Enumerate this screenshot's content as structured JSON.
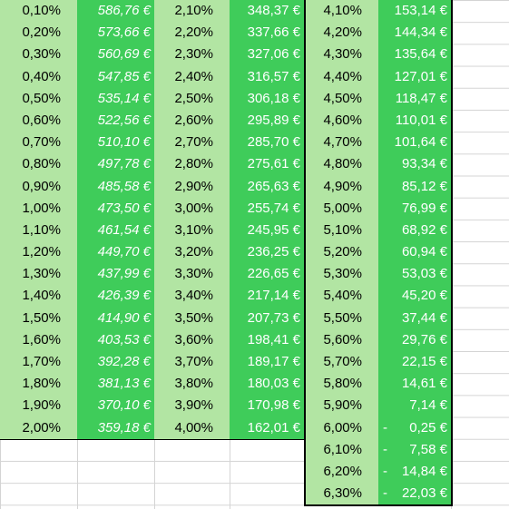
{
  "sheet": {
    "colors": {
      "percent_bg": "#b2e5a3",
      "amount_bg": "#3fcc5a",
      "border": "#000000",
      "grid": "#d4d4d4"
    },
    "block1": {
      "rows": [
        {
          "rate": "0,10%",
          "amount": "586,76 €"
        },
        {
          "rate": "0,20%",
          "amount": "573,66 €"
        },
        {
          "rate": "0,30%",
          "amount": "560,69 €"
        },
        {
          "rate": "0,40%",
          "amount": "547,85 €"
        },
        {
          "rate": "0,50%",
          "amount": "535,14 €"
        },
        {
          "rate": "0,60%",
          "amount": "522,56 €"
        },
        {
          "rate": "0,70%",
          "amount": "510,10 €"
        },
        {
          "rate": "0,80%",
          "amount": "497,78 €"
        },
        {
          "rate": "0,90%",
          "amount": "485,58 €"
        },
        {
          "rate": "1,00%",
          "amount": "473,50 €"
        },
        {
          "rate": "1,10%",
          "amount": "461,54 €"
        },
        {
          "rate": "1,20%",
          "amount": "449,70 €"
        },
        {
          "rate": "1,30%",
          "amount": "437,99 €"
        },
        {
          "rate": "1,40%",
          "amount": "426,39 €"
        },
        {
          "rate": "1,50%",
          "amount": "414,90 €"
        },
        {
          "rate": "1,60%",
          "amount": "403,53 €"
        },
        {
          "rate": "1,70%",
          "amount": "392,28 €"
        },
        {
          "rate": "1,80%",
          "amount": "381,13 €"
        },
        {
          "rate": "1,90%",
          "amount": "370,10 €"
        },
        {
          "rate": "2,00%",
          "amount": "359,18 €"
        }
      ]
    },
    "block2": {
      "rows": [
        {
          "rate": "2,10%",
          "amount": "348,37 €"
        },
        {
          "rate": "2,20%",
          "amount": "337,66 €"
        },
        {
          "rate": "2,30%",
          "amount": "327,06 €"
        },
        {
          "rate": "2,40%",
          "amount": "316,57 €"
        },
        {
          "rate": "2,50%",
          "amount": "306,18 €"
        },
        {
          "rate": "2,60%",
          "amount": "295,89 €"
        },
        {
          "rate": "2,70%",
          "amount": "285,70 €"
        },
        {
          "rate": "2,80%",
          "amount": "275,61 €"
        },
        {
          "rate": "2,90%",
          "amount": "265,63 €"
        },
        {
          "rate": "3,00%",
          "amount": "255,74 €"
        },
        {
          "rate": "3,10%",
          "amount": "245,95 €"
        },
        {
          "rate": "3,20%",
          "amount": "236,25 €"
        },
        {
          "rate": "3,30%",
          "amount": "226,65 €"
        },
        {
          "rate": "3,40%",
          "amount": "217,14 €"
        },
        {
          "rate": "3,50%",
          "amount": "207,73 €"
        },
        {
          "rate": "3,60%",
          "amount": "198,41 €"
        },
        {
          "rate": "3,70%",
          "amount": "189,17 €"
        },
        {
          "rate": "3,80%",
          "amount": "180,03 €"
        },
        {
          "rate": "3,90%",
          "amount": "170,98 €"
        },
        {
          "rate": "4,00%",
          "amount": "162,01 €"
        }
      ]
    },
    "block3": {
      "rows": [
        {
          "rate": "4,10%",
          "amount": "153,14 €",
          "sign": ""
        },
        {
          "rate": "4,20%",
          "amount": "144,34 €",
          "sign": ""
        },
        {
          "rate": "4,30%",
          "amount": "135,64 €",
          "sign": ""
        },
        {
          "rate": "4,40%",
          "amount": "127,01 €",
          "sign": ""
        },
        {
          "rate": "4,50%",
          "amount": "118,47 €",
          "sign": ""
        },
        {
          "rate": "4,60%",
          "amount": "110,01 €",
          "sign": ""
        },
        {
          "rate": "4,70%",
          "amount": "101,64 €",
          "sign": ""
        },
        {
          "rate": "4,80%",
          "amount": "93,34 €",
          "sign": ""
        },
        {
          "rate": "4,90%",
          "amount": "85,12 €",
          "sign": ""
        },
        {
          "rate": "5,00%",
          "amount": "76,99 €",
          "sign": ""
        },
        {
          "rate": "5,10%",
          "amount": "68,92 €",
          "sign": ""
        },
        {
          "rate": "5,20%",
          "amount": "60,94 €",
          "sign": ""
        },
        {
          "rate": "5,30%",
          "amount": "53,03 €",
          "sign": ""
        },
        {
          "rate": "5,40%",
          "amount": "45,20 €",
          "sign": ""
        },
        {
          "rate": "5,50%",
          "amount": "37,44 €",
          "sign": ""
        },
        {
          "rate": "5,60%",
          "amount": "29,76 €",
          "sign": ""
        },
        {
          "rate": "5,70%",
          "amount": "22,15 €",
          "sign": ""
        },
        {
          "rate": "5,80%",
          "amount": "14,61 €",
          "sign": ""
        },
        {
          "rate": "5,90%",
          "amount": "7,14 €",
          "sign": ""
        },
        {
          "rate": "6,00%",
          "amount": "0,25 €",
          "sign": "-"
        },
        {
          "rate": "6,10%",
          "amount": "7,58 €",
          "sign": "-"
        },
        {
          "rate": "6,20%",
          "amount": "14,84 €",
          "sign": "-"
        },
        {
          "rate": "6,30%",
          "amount": "22,03 €",
          "sign": "-"
        }
      ]
    }
  }
}
